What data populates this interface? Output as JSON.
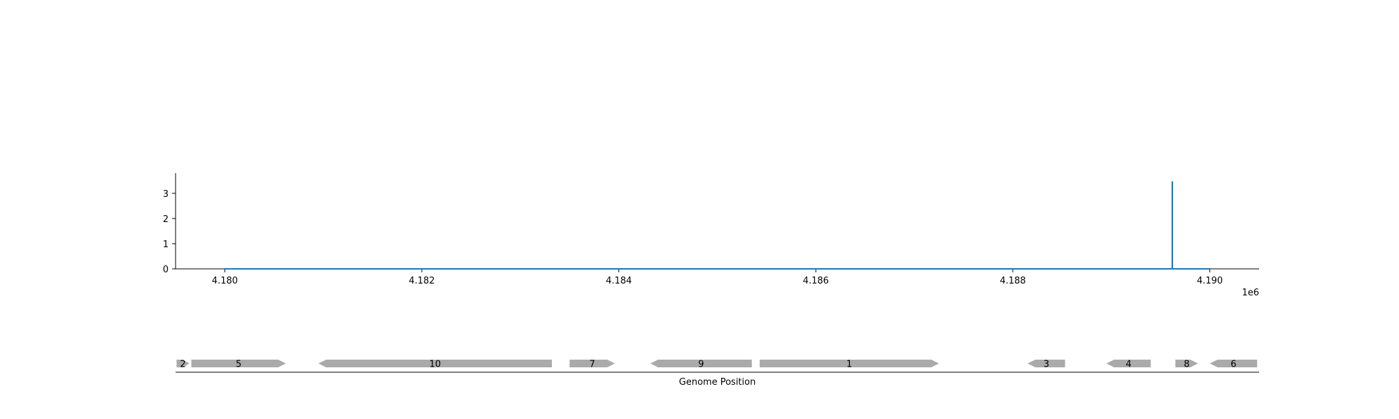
{
  "chart_data": [
    {
      "type": "line",
      "title": "",
      "xlabel": "",
      "ylabel": "",
      "x_scale_label": "1e6",
      "xlim": [
        4179500,
        4190500
      ],
      "ylim": [
        0,
        3.8
      ],
      "x_ticks": [
        4180000,
        4182000,
        4184000,
        4186000,
        4188000,
        4190000
      ],
      "x_tick_labels": [
        "4.180",
        "4.182",
        "4.184",
        "4.186",
        "4.188",
        "4.190"
      ],
      "y_ticks": [
        0,
        1,
        2,
        3
      ],
      "y_tick_labels": [
        "0",
        "1",
        "2",
        "3"
      ],
      "color": "#1f77b4",
      "grid": false,
      "series": [
        {
          "x": [
            4180000,
            4189618,
            4189618,
            4189619,
            4189619,
            4190000
          ],
          "y": [
            0,
            0,
            3.45,
            3.45,
            0,
            0
          ]
        }
      ]
    },
    {
      "type": "gene-track",
      "xlabel": "Genome Position",
      "xlim": [
        4179500,
        4190500
      ],
      "color": "#aaaaaa",
      "genes": [
        {
          "label": "2",
          "start": 4179510,
          "end": 4179640,
          "strand": "+"
        },
        {
          "label": "5",
          "start": 4179660,
          "end": 4180620,
          "strand": "+"
        },
        {
          "label": "10",
          "start": 4180950,
          "end": 4183320,
          "strand": "-"
        },
        {
          "label": "7",
          "start": 4183500,
          "end": 4183960,
          "strand": "+"
        },
        {
          "label": "9",
          "start": 4184320,
          "end": 4185350,
          "strand": "-"
        },
        {
          "label": "1",
          "start": 4185430,
          "end": 4187250,
          "strand": "+"
        },
        {
          "label": "3",
          "start": 4188150,
          "end": 4188530,
          "strand": "-"
        },
        {
          "label": "4",
          "start": 4188950,
          "end": 4189400,
          "strand": "-"
        },
        {
          "label": "8",
          "start": 4189650,
          "end": 4189880,
          "strand": "+"
        },
        {
          "label": "6",
          "start": 4190000,
          "end": 4190480,
          "strand": "-"
        }
      ]
    }
  ]
}
